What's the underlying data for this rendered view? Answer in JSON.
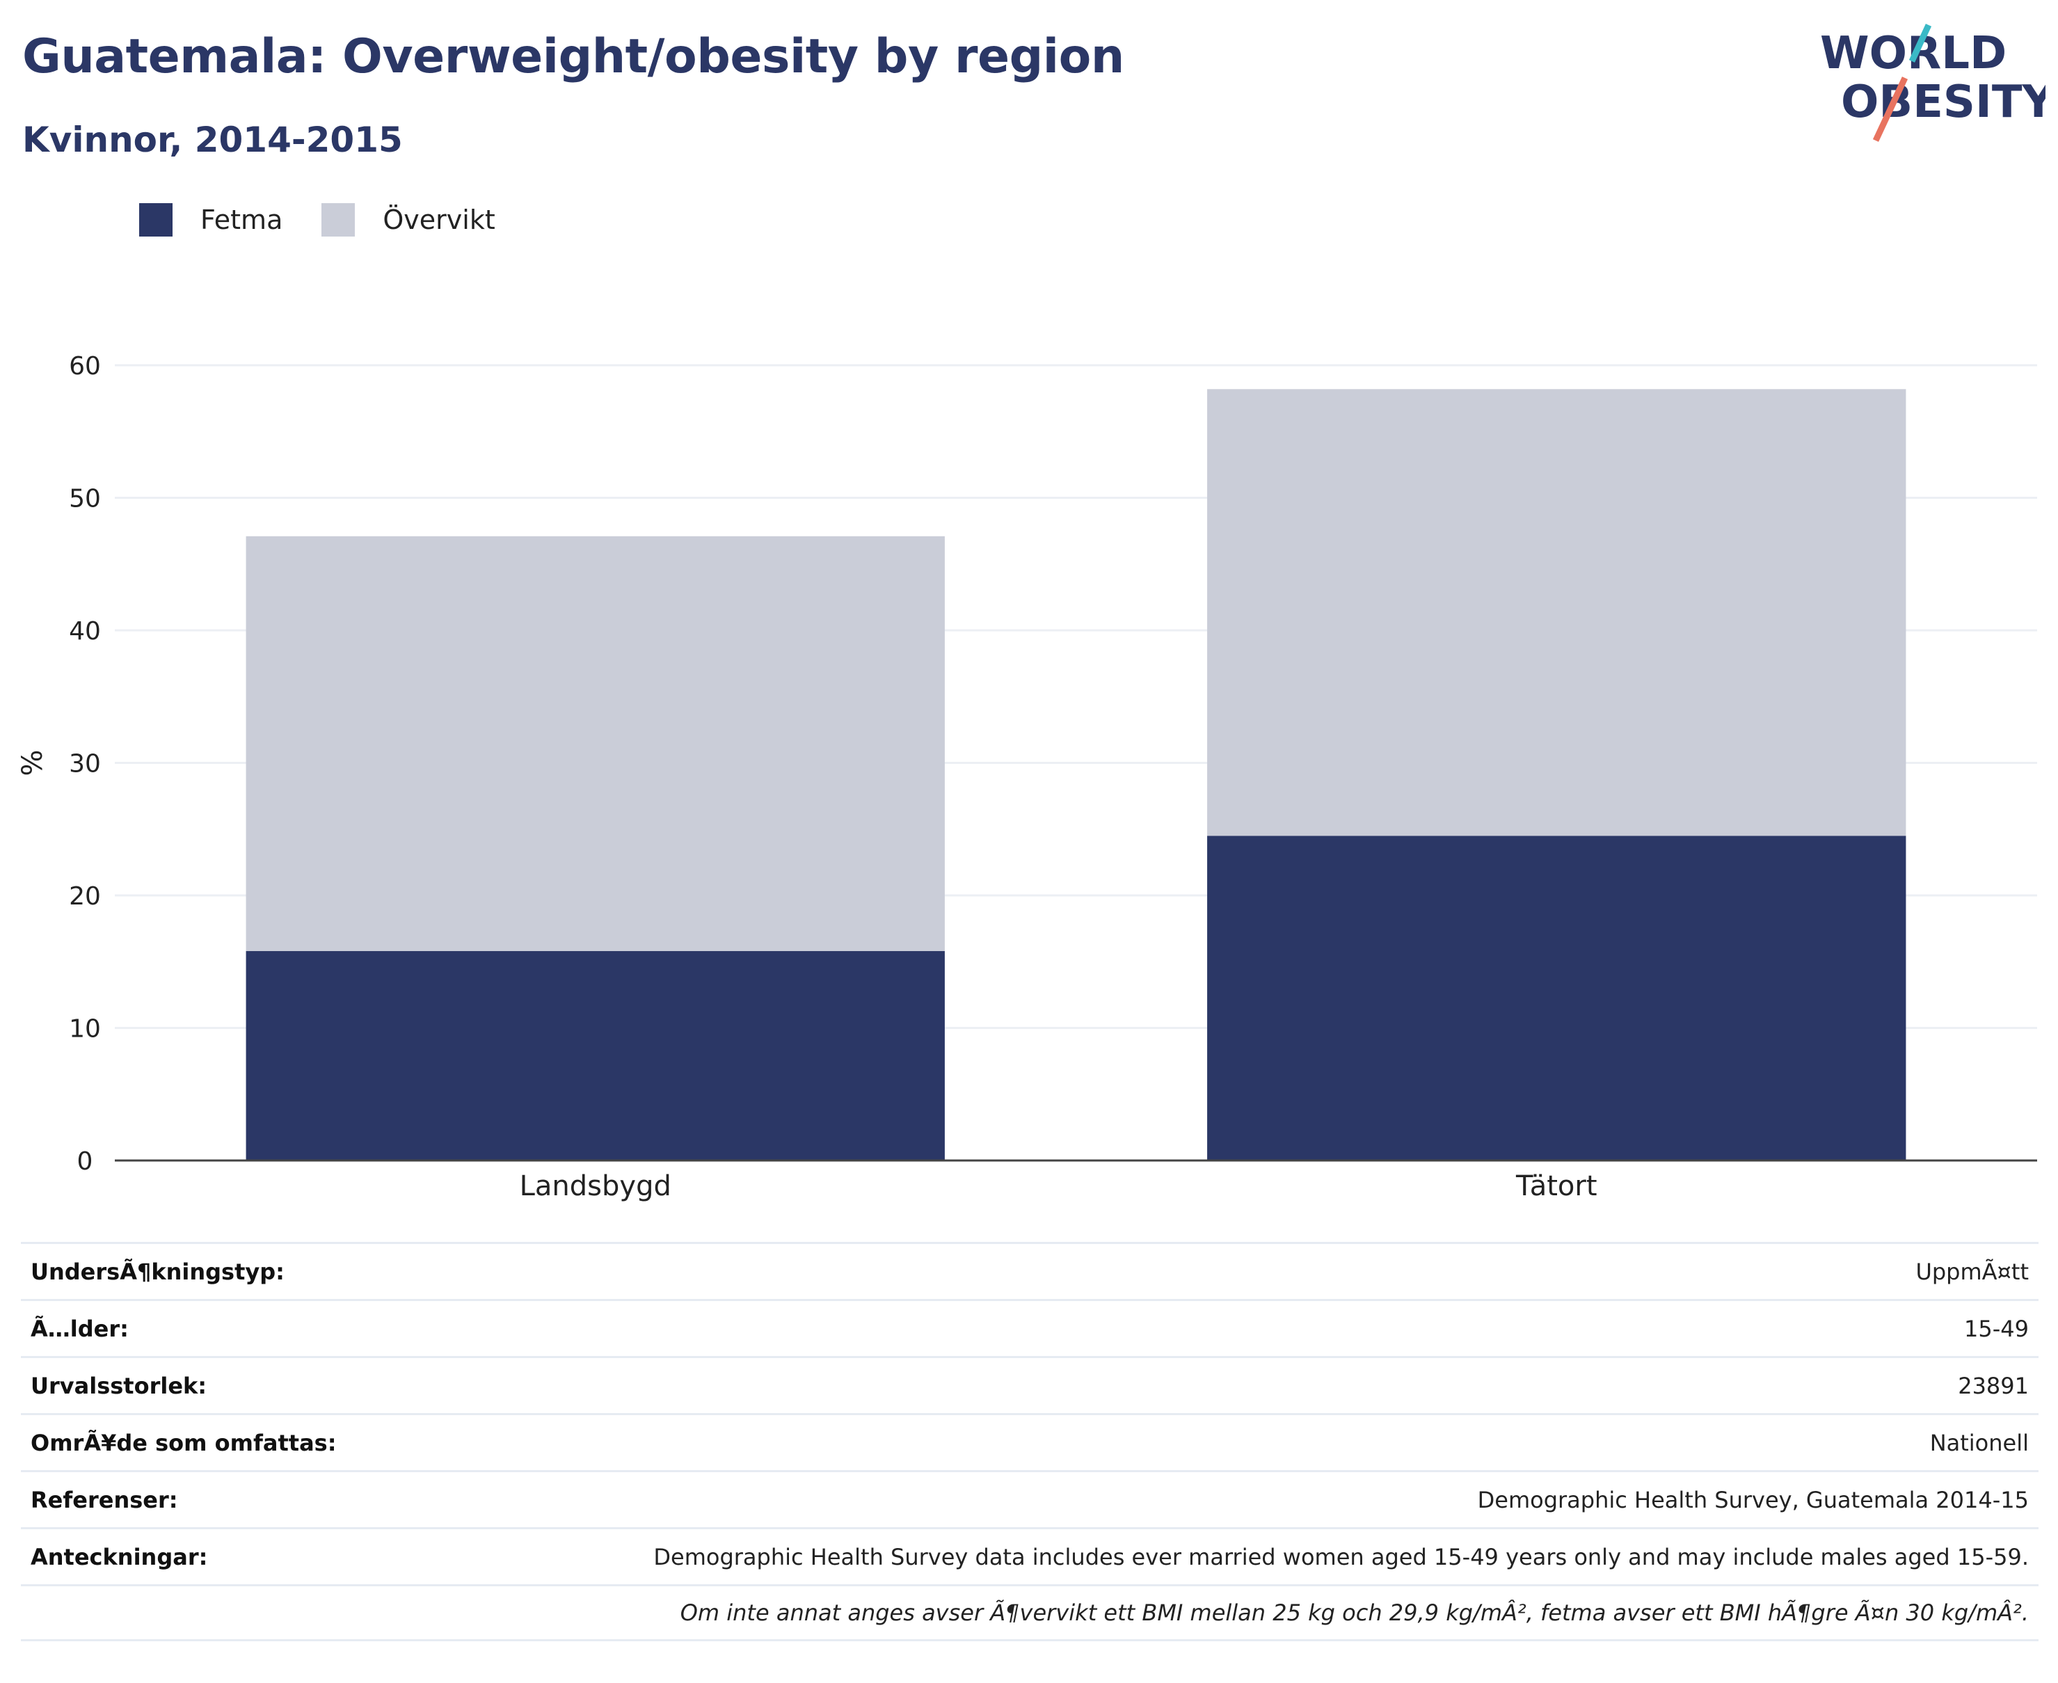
{
  "header": {
    "title": "Guatemala: Overweight/obesity by region",
    "subtitle": "Kvinnor, 2014-2015"
  },
  "logo": {
    "line1": "WORLD",
    "line2": "OBESITY"
  },
  "colors": {
    "fetma": "#2b3766",
    "overvikt": "#cacdd8",
    "title": "#2b3766",
    "logo_teal": "#3ab9c6",
    "logo_coral": "#e8735f",
    "grid": "#eceff4",
    "axis": "#444444"
  },
  "chart_data": {
    "type": "bar",
    "stacked": true,
    "categories": [
      "Landsbygd",
      "Tätort"
    ],
    "series": [
      {
        "name": "Fetma",
        "values": [
          15.8,
          24.5
        ]
      },
      {
        "name": "Övervikt",
        "values": [
          31.3,
          33.7
        ]
      }
    ],
    "ylabel": "%",
    "ylim": [
      0,
      60
    ],
    "yticks": [
      0,
      10,
      20,
      30,
      40,
      50,
      60
    ],
    "grid": true,
    "legend_position": "top-left"
  },
  "metadata": [
    {
      "label": "UndersÃ¶kningstyp:",
      "value": "UppmÃ¤tt"
    },
    {
      "label": "Ã…lder:",
      "value": "15-49"
    },
    {
      "label": "Urvalsstorlek:",
      "value": "23891"
    },
    {
      "label": "OmrÃ¥de som omfattas:",
      "value": "Nationell"
    },
    {
      "label": "Referenser:",
      "value": "Demographic Health Survey, Guatemala 2014-15"
    },
    {
      "label": "Anteckningar:",
      "value": "Demographic Health Survey data includes ever married women aged 15-49 years only and may include males aged 15-59."
    },
    {
      "label": "",
      "value": "Om inte annat anges avser Ã¶vervikt ett BMI mellan 25 kg och 29,9 kg/mÂ², fetma avser ett BMI hÃ¶gre Ã¤n 30 kg/mÂ²."
    }
  ]
}
